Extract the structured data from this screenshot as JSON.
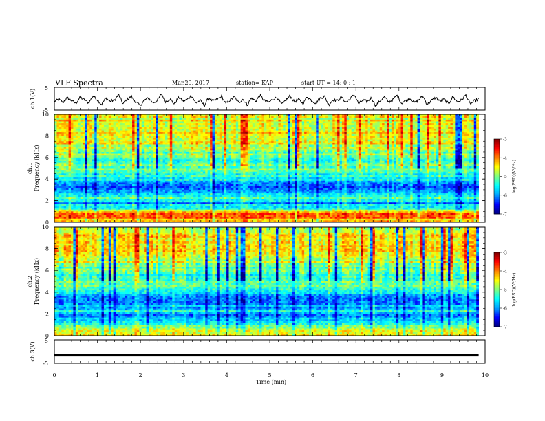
{
  "header": {
    "title": "VLF Spectra",
    "date": "Mar.29, 2017",
    "station": "station= KAP",
    "start": "start  UT =   14: 0  : 1"
  },
  "chart_data": [
    {
      "type": "line",
      "panel": "ch1-waveform",
      "ylabel": "ch.1(V)",
      "ylim": [
        -5,
        5
      ],
      "xlim": [
        0,
        10
      ],
      "y_ticks": [
        "5",
        "-5"
      ],
      "series": [
        {
          "values": [
            -1.2,
            -0.3,
            -1.6,
            0.4,
            -0.8,
            -2.1,
            0.6,
            -0.5,
            -1.9,
            1.2,
            -0.4,
            -2.6,
            0.2,
            -1.1,
            -0.7,
            1.8,
            -2.3,
            -0.2,
            0.9,
            -1.5,
            -3.1,
            -0.6,
            0.3,
            -1.8,
            -0.9,
            2.1,
            -1.3,
            -0.1,
            -2.4,
            0.7,
            -1.0,
            -0.4,
            1.4,
            -2.0,
            -0.8,
            -3.0,
            0.5,
            -1.2,
            -0.3,
            1.0,
            -2.2,
            -0.6,
            0.8,
            -1.7,
            -0.2,
            -2.8,
            0.4,
            -1.1,
            1.6,
            -0.9,
            -1.6,
            -0.2,
            0.6,
            -2.5,
            -0.7,
            1.3,
            -1.4,
            -0.3,
            -2.1,
            0.9,
            -0.8,
            -1.9,
            0.2,
            1.1,
            -2.7,
            -0.5,
            -1.0,
            0.7,
            -1.6,
            -0.1,
            1.9,
            -2.3,
            -0.6,
            -1.3,
            0.4,
            -3.2,
            -0.9,
            0.8,
            -1.5,
            -0.4,
            1.5,
            -2.0,
            -0.7,
            0.1,
            -1.8,
            -0.5,
            1.2,
            -2.6,
            -0.8,
            0.5,
            -1.1,
            -0.3,
            -2.2,
            0.9,
            -1.4,
            -0.6,
            1.7,
            -2.4,
            -1.0,
            -0.2
          ]
        }
      ]
    },
    {
      "type": "heatmap",
      "panel": "ch1-spectrogram",
      "ylabel": "Frequency (kHz)",
      "channel_label": "ch.1",
      "xlim": [
        0,
        10
      ],
      "ylim": [
        0,
        10
      ],
      "y_ticks": [
        "0",
        "2",
        "4",
        "6",
        "8",
        "10"
      ],
      "colorbar": {
        "label": "log(PSD)(V²/Hz)",
        "range": [
          -7,
          -3
        ],
        "ticks": [
          "-3",
          "-4",
          "-5",
          "-6",
          "-7"
        ]
      },
      "freq_profile_log_psd": [
        {
          "f": 0.25,
          "v": -4.2
        },
        {
          "f": 0.75,
          "v": -3.8
        },
        {
          "f": 1.25,
          "v": -5.2
        },
        {
          "f": 1.75,
          "v": -5.9
        },
        {
          "f": 2.25,
          "v": -5.1
        },
        {
          "f": 2.75,
          "v": -5.7
        },
        {
          "f": 3.25,
          "v": -6.1
        },
        {
          "f": 3.75,
          "v": -5.8
        },
        {
          "f": 4.25,
          "v": -5.4
        },
        {
          "f": 4.75,
          "v": -5.0
        },
        {
          "f": 5.25,
          "v": -5.2
        },
        {
          "f": 5.75,
          "v": -5.4
        },
        {
          "f": 6.25,
          "v": -5.0
        },
        {
          "f": 6.75,
          "v": -4.8
        },
        {
          "f": 7.25,
          "v": -4.6
        },
        {
          "f": 7.75,
          "v": -4.5
        },
        {
          "f": 8.25,
          "v": -4.4
        },
        {
          "f": 8.75,
          "v": -4.4
        },
        {
          "f": 9.25,
          "v": -4.5
        },
        {
          "f": 9.75,
          "v": -4.6
        }
      ]
    },
    {
      "type": "heatmap",
      "panel": "ch2-spectrogram",
      "ylabel": "Frequency (kHz)",
      "channel_label": "ch.2",
      "xlim": [
        0,
        10
      ],
      "ylim": [
        0,
        10
      ],
      "y_ticks": [
        "0",
        "2",
        "4",
        "6",
        "8",
        "10"
      ],
      "colorbar": {
        "label": "log(PSD)(V²/Hz)",
        "range": [
          -7,
          -3
        ],
        "ticks": [
          "-3",
          "-4",
          "-5",
          "-6",
          "-7"
        ]
      },
      "freq_profile_log_psd": [
        {
          "f": 0.25,
          "v": -4.6
        },
        {
          "f": 0.75,
          "v": -4.9
        },
        {
          "f": 1.25,
          "v": -5.4
        },
        {
          "f": 1.75,
          "v": -6.0
        },
        {
          "f": 2.25,
          "v": -5.6
        },
        {
          "f": 2.75,
          "v": -5.9
        },
        {
          "f": 3.25,
          "v": -6.0
        },
        {
          "f": 3.75,
          "v": -5.7
        },
        {
          "f": 4.25,
          "v": -5.3
        },
        {
          "f": 4.75,
          "v": -5.2
        },
        {
          "f": 5.25,
          "v": -5.3
        },
        {
          "f": 5.75,
          "v": -5.4
        },
        {
          "f": 6.25,
          "v": -5.0
        },
        {
          "f": 6.75,
          "v": -4.8
        },
        {
          "f": 7.25,
          "v": -4.6
        },
        {
          "f": 7.75,
          "v": -4.5
        },
        {
          "f": 8.25,
          "v": -4.4
        },
        {
          "f": 8.75,
          "v": -4.4
        },
        {
          "f": 9.25,
          "v": -4.5
        },
        {
          "f": 9.75,
          "v": -4.6
        }
      ]
    },
    {
      "type": "line",
      "panel": "ch3-waveform",
      "ylabel": "ch.3(V)",
      "ylim": [
        -5,
        5
      ],
      "xlim": [
        0,
        10
      ],
      "y_ticks": [
        "5",
        "-5"
      ],
      "series": [
        {
          "values": [
            -1.5,
            -1.5
          ]
        }
      ]
    }
  ],
  "xaxis": {
    "label": "Time  (min)",
    "ticks": [
      "0",
      "1",
      "2",
      "3",
      "4",
      "5",
      "6",
      "7",
      "8",
      "9",
      "10"
    ]
  },
  "colors": {
    "colormap": [
      "#00007f",
      "#0000ff",
      "#00a0ff",
      "#00ffff",
      "#7fff7f",
      "#ffff00",
      "#ff8000",
      "#ff0000",
      "#7f0000"
    ]
  }
}
